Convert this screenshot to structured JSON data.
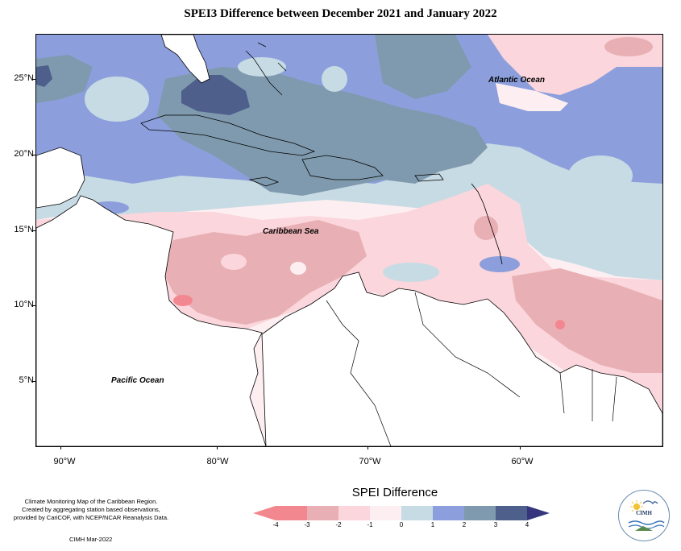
{
  "title": "SPEI3 Difference between December 2021 and January 2022",
  "map": {
    "lat_labels": [
      "25°N",
      "20°N",
      "15°N",
      "10°N",
      "5°N"
    ],
    "lon_labels": [
      "90°W",
      "80°W",
      "70°W",
      "60°W"
    ],
    "ocean_labels": {
      "atlantic": "Atlantic Ocean",
      "caribbean": "Caribbean Sea",
      "pacific": "Pacific Ocean"
    }
  },
  "legend": {
    "title": "SPEI Difference",
    "ticks": [
      "-4",
      "-3",
      "-2",
      "-1",
      "0",
      "1",
      "2",
      "3",
      "4"
    ],
    "colors": [
      "#f3878f",
      "#e8b0b4",
      "#fbd6dc",
      "#fdeff1",
      "#c7dbe4",
      "#8c9fdc",
      "#7f9aae",
      "#4e5f8c",
      "#34357d"
    ]
  },
  "credits": {
    "line1": "Climate Monitoring Map of the Caribbean Region.",
    "line2": "Created by aggregating station based observations,",
    "line3": "provided by CariCOF, with NCEP/NCAR Reanalysis Data.",
    "date": "CIMH Mar-2022"
  },
  "logo": {
    "text": "CIMH"
  }
}
